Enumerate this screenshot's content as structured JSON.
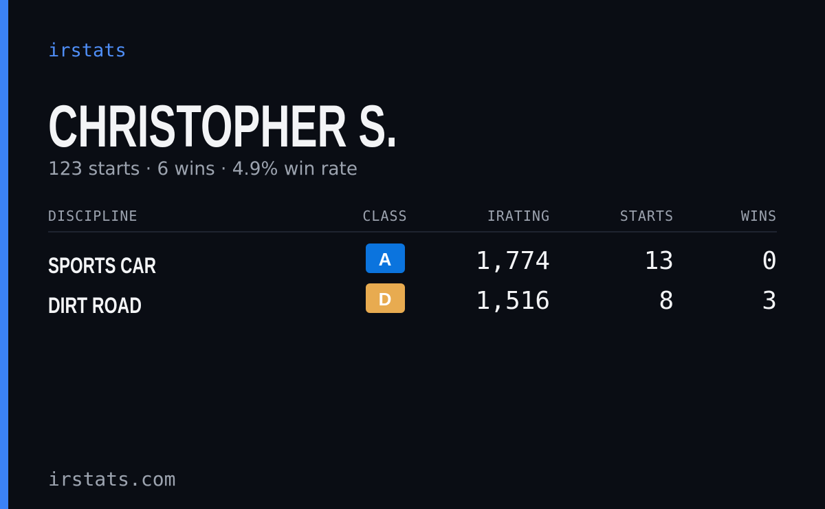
{
  "brand": "irstats",
  "profile": {
    "name": "CHRISTOPHER S.",
    "summary": "123 starts · 6 wins · 4.9% win rate"
  },
  "table": {
    "headers": [
      "DISCIPLINE",
      "CLASS",
      "IRATING",
      "STARTS",
      "WINS"
    ],
    "rows": [
      [
        "SPORTS CAR",
        "A",
        "1,774",
        "13",
        "0"
      ],
      [
        "DIRT ROAD",
        "D",
        "1,516",
        "8",
        "3"
      ]
    ]
  },
  "footer": "irstats.com"
}
